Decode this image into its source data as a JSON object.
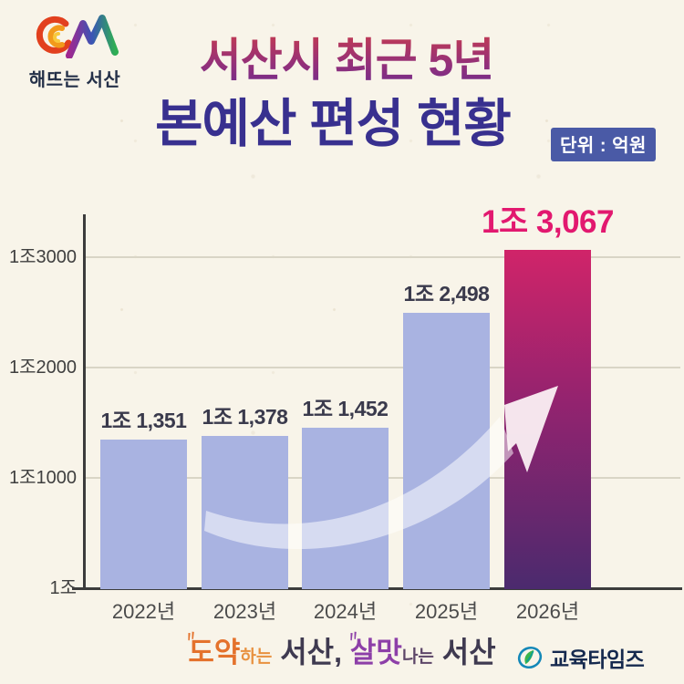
{
  "brand": {
    "logo_text": "해뜨는 서산"
  },
  "header": {
    "title_line1": "서산시 최근 5년",
    "title_line2": "본예산 편성 현황",
    "unit_badge": "단위 : 억원"
  },
  "chart_data": {
    "type": "bar",
    "title": "서산시 최근 5년 본예산 편성 현황",
    "unit": "억원",
    "categories": [
      "2022년",
      "2023년",
      "2024년",
      "2025년",
      "2026년"
    ],
    "values": [
      11351,
      11378,
      11452,
      12498,
      13067
    ],
    "value_labels": [
      "1조 1,351",
      "1조 1,378",
      "1조 1,452",
      "1조 2,498",
      "1조 3,067"
    ],
    "highlight_index": 4,
    "y_axis": {
      "min": 10000,
      "max": 13400,
      "ticks": [
        {
          "label": "1조3000",
          "value": 13000
        },
        {
          "label": "1조2000",
          "value": 12000
        },
        {
          "label": "1조1000",
          "value": 11000
        },
        {
          "label": "1조",
          "value": 10000
        }
      ]
    },
    "grid": true,
    "legend": false,
    "colors": {
      "bar": "#a9b3e1",
      "highlight_top": "#d02469",
      "highlight_mid": "#93236f",
      "highlight_bottom": "#4b2a6e",
      "value_label": "#3a3a4c",
      "highlight_value_label": "#e2186f",
      "axis": "#3c3c3c",
      "gridline": "#d9d5c6"
    },
    "annotations": [
      "growth-arrow"
    ]
  },
  "footer": {
    "ornament": "〃",
    "slogan_parts": [
      {
        "text": "도약"
      },
      {
        "text": "하는"
      },
      {
        "text": " 서산, "
      },
      {
        "text": "살맛"
      },
      {
        "text": "나는"
      },
      {
        "text": " 서산"
      }
    ],
    "press_logo_text": "교육타임즈"
  }
}
